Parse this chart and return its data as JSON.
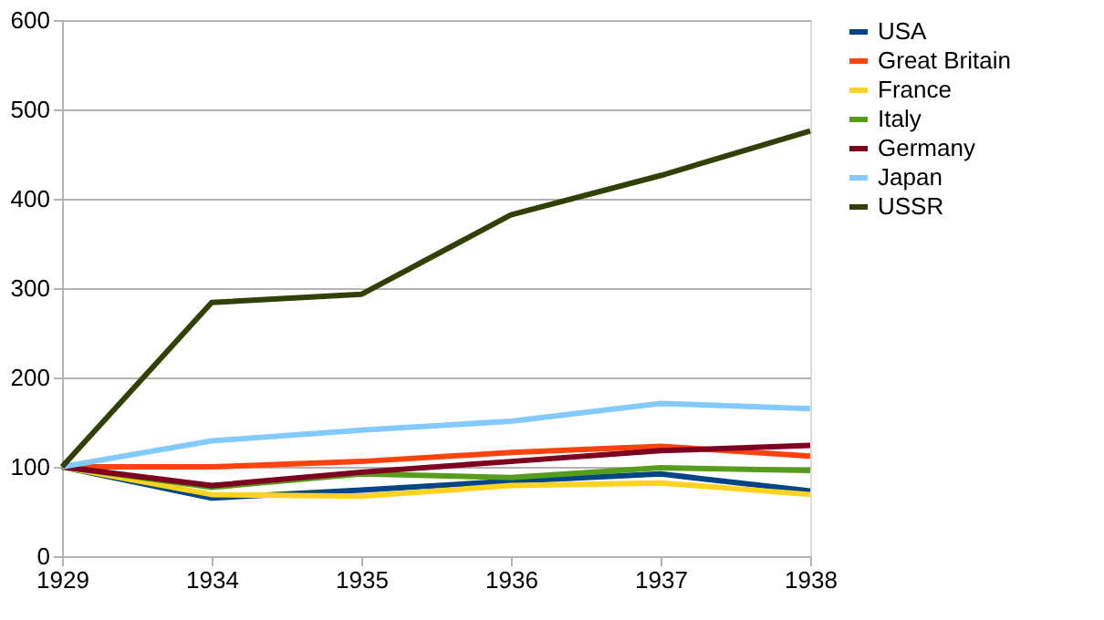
{
  "chart_data": {
    "type": "line",
    "categories": [
      "1929",
      "1934",
      "1935",
      "1936",
      "1937",
      "1938"
    ],
    "series": [
      {
        "name": "USA",
        "color": "#004586",
        "values": [
          100,
          65,
          74,
          84,
          92,
          73
        ]
      },
      {
        "name": "Great Britain",
        "color": "#ff420e",
        "values": [
          100,
          100,
          106,
          116,
          123,
          112
        ]
      },
      {
        "name": "France",
        "color": "#ffd320",
        "values": [
          100,
          69,
          67,
          79,
          82,
          69
        ]
      },
      {
        "name": "Italy",
        "color": "#579d1c",
        "values": [
          100,
          77,
          92,
          88,
          99,
          96
        ]
      },
      {
        "name": "Germany",
        "color": "#7e0021",
        "values": [
          100,
          79,
          94,
          106,
          118,
          124
        ]
      },
      {
        "name": "Japan",
        "color": "#83caff",
        "values": [
          100,
          129,
          141,
          151,
          171,
          165
        ]
      },
      {
        "name": "USSR",
        "color": "#314004",
        "values": [
          100,
          284,
          293,
          382,
          426,
          476
        ]
      }
    ],
    "ylim": [
      0,
      600
    ],
    "yticks": [
      0,
      100,
      200,
      300,
      400,
      500,
      600
    ],
    "grid": "y",
    "legend": "right",
    "marker": "none",
    "line_style": "solid"
  }
}
